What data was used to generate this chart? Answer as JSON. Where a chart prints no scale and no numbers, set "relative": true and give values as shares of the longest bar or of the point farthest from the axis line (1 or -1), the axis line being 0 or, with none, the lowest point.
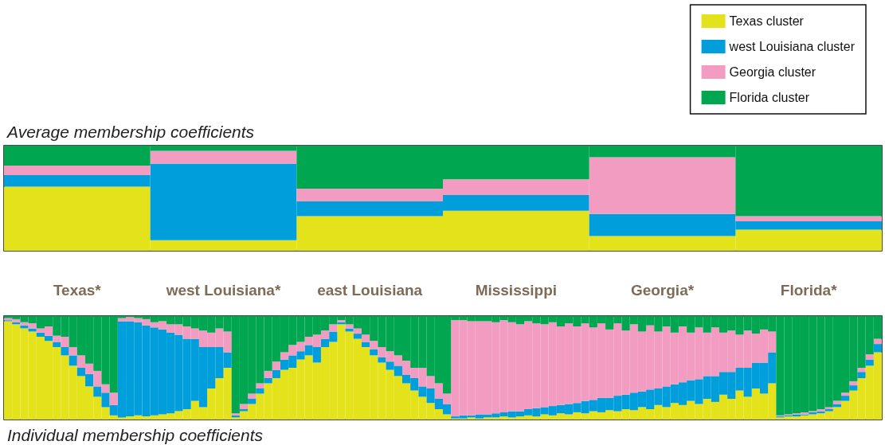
{
  "chart_data": [
    {
      "type": "bar",
      "title": "Average membership coefficients",
      "stacked": true,
      "relative": true,
      "legend": "top right",
      "tick_labels": "x",
      "categories": [
        "Texas*",
        "west Louisiana*",
        "east Louisiana",
        "Mississippi",
        "Georgia*",
        "Florida*"
      ],
      "series": [
        {
          "name": "Texas cluster",
          "color": "#e3e21b",
          "values": [
            0.61,
            0.1,
            0.33,
            0.38,
            0.14,
            0.2
          ]
        },
        {
          "name": "west Louisiana cluster",
          "color": "#009fdc",
          "values": [
            0.11,
            0.73,
            0.14,
            0.15,
            0.21,
            0.08
          ]
        },
        {
          "name": "Georgia cluster",
          "color": "#f29cc2",
          "values": [
            0.09,
            0.12,
            0.12,
            0.15,
            0.54,
            0.05
          ]
        },
        {
          "name": "Florida cluster",
          "color": "#00a650",
          "values": [
            0.19,
            0.05,
            0.41,
            0.32,
            0.11,
            0.67
          ]
        }
      ]
    },
    {
      "type": "bar",
      "title": "Individual membership coefficients",
      "stacked": true,
      "relative": true,
      "tick_labels": false,
      "categories": [
        null,
        null,
        null,
        null,
        null,
        null,
        null,
        null,
        null,
        null,
        null,
        null,
        null,
        null,
        null,
        null,
        null,
        null,
        null,
        null,
        null,
        null,
        null,
        null,
        null,
        null,
        null,
        null,
        null,
        null,
        null,
        null,
        null,
        null,
        null,
        null,
        null,
        null,
        null,
        null,
        null,
        null,
        null,
        null,
        null,
        null,
        null,
        null,
        null,
        null,
        null,
        null,
        null,
        null,
        null,
        null,
        null,
        null,
        null,
        null,
        null,
        null,
        null,
        null,
        null,
        null,
        null,
        null,
        null,
        null,
        null,
        null,
        null,
        null,
        null,
        null,
        null,
        null,
        null,
        null,
        null,
        null,
        null,
        null,
        null,
        null,
        null,
        null,
        null,
        null,
        null,
        null,
        null,
        null,
        null,
        null,
        null,
        null,
        null,
        null,
        null,
        null,
        null,
        null,
        null,
        null,
        null,
        null
      ],
      "series": [
        {
          "color": "#e3e21b",
          "values": [
            0.95,
            0.92,
            0.88,
            0.85,
            0.8,
            0.76,
            0.7,
            0.62,
            0.52,
            0.42,
            0.32,
            0.22,
            0.12,
            0.04,
            0.02,
            0.03,
            0.04,
            0.03,
            0.04,
            0.05,
            0.06,
            0.08,
            0.1,
            0.18,
            0.12,
            0.3,
            0.4,
            0.5,
            0.02,
            0.08,
            0.15,
            0.25,
            0.35,
            0.4,
            0.48,
            0.5,
            0.58,
            0.62,
            0.55,
            0.7,
            0.75,
            0.92,
            0.85,
            0.78,
            0.7,
            0.62,
            0.55,
            0.48,
            0.42,
            0.35,
            0.28,
            0.22,
            0.16,
            0.1,
            0.05,
            0.01,
            0.01,
            0.02,
            0.01,
            0.02,
            0.02,
            0.03,
            0.02,
            0.03,
            0.04,
            0.03,
            0.05,
            0.04,
            0.06,
            0.05,
            0.07,
            0.06,
            0.08,
            0.07,
            0.09,
            0.08,
            0.1,
            0.09,
            0.12,
            0.1,
            0.14,
            0.12,
            0.16,
            0.14,
            0.18,
            0.15,
            0.2,
            0.17,
            0.24,
            0.2,
            0.28,
            0.22,
            0.3,
            0.25,
            0.35,
            0.02,
            0.03,
            0.03,
            0.04,
            0.05,
            0.06,
            0.08,
            0.12,
            0.18,
            0.28,
            0.4,
            0.52,
            0.65
          ]
        },
        {
          "color": "#009fdc",
          "values": [
            0.01,
            0.02,
            0.03,
            0.03,
            0.04,
            0.05,
            0.05,
            0.08,
            0.1,
            0.08,
            0.12,
            0.1,
            0.14,
            0.1,
            0.93,
            0.92,
            0.9,
            0.88,
            0.85,
            0.82,
            0.78,
            0.74,
            0.68,
            0.6,
            0.58,
            0.4,
            0.3,
            0.15,
            0.02,
            0.02,
            0.05,
            0.05,
            0.05,
            0.08,
            0.1,
            0.12,
            0.08,
            0.1,
            0.15,
            0.08,
            0.1,
            0.02,
            0.03,
            0.05,
            0.05,
            0.06,
            0.05,
            0.08,
            0.1,
            0.08,
            0.12,
            0.1,
            0.14,
            0.1,
            0.1,
            0.02,
            0.03,
            0.02,
            0.04,
            0.03,
            0.04,
            0.04,
            0.06,
            0.05,
            0.06,
            0.08,
            0.07,
            0.09,
            0.08,
            0.1,
            0.09,
            0.12,
            0.11,
            0.14,
            0.12,
            0.15,
            0.14,
            0.17,
            0.15,
            0.19,
            0.16,
            0.2,
            0.18,
            0.22,
            0.2,
            0.24,
            0.22,
            0.25,
            0.22,
            0.26,
            0.22,
            0.28,
            0.25,
            0.3,
            0.3,
            0.01,
            0.01,
            0.02,
            0.01,
            0.02,
            0.02,
            0.02,
            0.03,
            0.05,
            0.05,
            0.06,
            0.06,
            0.08
          ]
        },
        {
          "color": "#f29cc2",
          "values": [
            0.02,
            0.03,
            0.03,
            0.05,
            0.04,
            0.09,
            0.06,
            0.1,
            0.08,
            0.12,
            0.1,
            0.15,
            0.08,
            0.12,
            0.03,
            0.04,
            0.04,
            0.06,
            0.05,
            0.08,
            0.08,
            0.1,
            0.12,
            0.1,
            0.16,
            0.14,
            0.18,
            0.2,
            0.02,
            0.05,
            0.05,
            0.05,
            0.07,
            0.08,
            0.07,
            0.1,
            0.09,
            0.08,
            0.12,
            0.08,
            0.07,
            0.02,
            0.04,
            0.05,
            0.07,
            0.08,
            0.1,
            0.1,
            0.1,
            0.14,
            0.1,
            0.18,
            0.12,
            0.15,
            0.1,
            0.93,
            0.92,
            0.91,
            0.9,
            0.9,
            0.88,
            0.89,
            0.86,
            0.84,
            0.85,
            0.82,
            0.8,
            0.81,
            0.76,
            0.78,
            0.74,
            0.75,
            0.7,
            0.72,
            0.66,
            0.7,
            0.62,
            0.66,
            0.58,
            0.62,
            0.55,
            0.58,
            0.5,
            0.54,
            0.46,
            0.5,
            0.42,
            0.47,
            0.38,
            0.4,
            0.32,
            0.36,
            0.28,
            0.32,
            0.2,
            0.01,
            0.01,
            0.01,
            0.02,
            0.01,
            0.02,
            0.02,
            0.03,
            0.03,
            0.04,
            0.04,
            0.05,
            0.05
          ]
        },
        {
          "color": "#00a650",
          "values": [
            0.02,
            0.03,
            0.06,
            0.07,
            0.12,
            0.1,
            0.19,
            0.2,
            0.3,
            0.38,
            0.46,
            0.53,
            0.66,
            0.74,
            0.02,
            0.01,
            0.02,
            0.03,
            0.06,
            0.05,
            0.08,
            0.08,
            0.1,
            0.12,
            0.14,
            0.16,
            0.12,
            0.15,
            0.94,
            0.85,
            0.75,
            0.65,
            0.53,
            0.44,
            0.35,
            0.28,
            0.25,
            0.2,
            0.18,
            0.14,
            0.08,
            0.04,
            0.08,
            0.12,
            0.18,
            0.24,
            0.3,
            0.34,
            0.38,
            0.43,
            0.5,
            0.5,
            0.58,
            0.65,
            0.75,
            0.04,
            0.04,
            0.05,
            0.05,
            0.05,
            0.06,
            0.04,
            0.06,
            0.08,
            0.05,
            0.07,
            0.08,
            0.06,
            0.1,
            0.07,
            0.1,
            0.07,
            0.11,
            0.07,
            0.13,
            0.07,
            0.14,
            0.08,
            0.15,
            0.09,
            0.15,
            0.1,
            0.16,
            0.1,
            0.16,
            0.11,
            0.16,
            0.11,
            0.16,
            0.14,
            0.18,
            0.14,
            0.17,
            0.13,
            0.15,
            0.96,
            0.95,
            0.94,
            0.93,
            0.92,
            0.9,
            0.88,
            0.82,
            0.74,
            0.63,
            0.5,
            0.37,
            0.22
          ]
        }
      ]
    }
  ]
}
